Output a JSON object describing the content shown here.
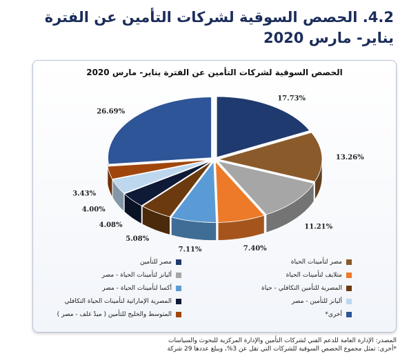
{
  "heading": {
    "line1": "4.2. الحصص السوقية لشركات التأمين عن الفترة",
    "line2": "يناير- مارس 2020"
  },
  "chart_data": {
    "type": "pie",
    "title": "الحصص السوقية لشركات التأمين عن الفترة يناير- مارس 2020",
    "slices": [
      {
        "name": "مصر للتأمين",
        "value": 17.73,
        "label": "17.73%",
        "color": "#1f3a6e"
      },
      {
        "name": "مصر لتأمينات الحياة",
        "value": 13.26,
        "label": "13.26%",
        "color": "#8b5a2b"
      },
      {
        "name": "أليانز لتأمينات الحياة - مصر",
        "value": 11.21,
        "label": "11.21%",
        "color": "#a6a6a6"
      },
      {
        "name": "متلايف لتأمينات الحياة",
        "value": 7.4,
        "label": "7.40%",
        "color": "#ec7a28"
      },
      {
        "name": "أكسا لتأمينات الحياة - مصر",
        "value": 7.11,
        "label": "7.11%",
        "color": "#5b9bd5"
      },
      {
        "name": "المصرية للتأمين التكافلي - حياة",
        "value": 5.08,
        "label": "5.08%",
        "color": "#6b3a0f"
      },
      {
        "name": "المصرية الإماراتية لتأمينات الحياة التكافلي",
        "value": 4.08,
        "label": "4.08%",
        "color": "#0e1a36"
      },
      {
        "name": "أليانز للتأمين - مصر",
        "value": 4.0,
        "label": "4.00%",
        "color": "#bdd7ee"
      },
      {
        "name": "المتوسط والخليج للتأمين ( ميدْ غلف - مصر )",
        "value": 3.43,
        "label": "3.43%",
        "color": "#a0460d"
      },
      {
        "name": "أخرى*",
        "value": 26.69,
        "label": "26.69%",
        "color": "#2e5597"
      }
    ]
  },
  "footnote": {
    "source": "المصدر: الإدارة العامة للدعم الفني لشركات التأمين والإدارة المركزية للبحوث والسياسات",
    "note": "*أخرى: تمثل مجموع الحصص السوقية للشركات التي تقل عن 3%، ويبلغ عددها 29 شركة"
  }
}
